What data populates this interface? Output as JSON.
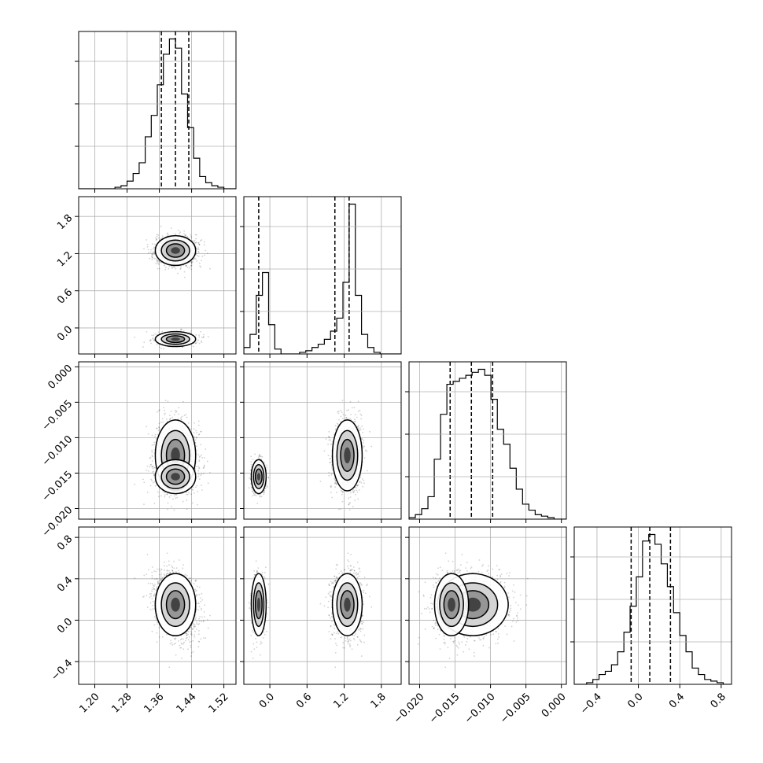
{
  "chart_data": {
    "type": "corner",
    "grid": true,
    "parameters": [
      {
        "ticks": [
          1.2,
          1.28,
          1.36,
          1.44,
          1.52
        ],
        "tick_labels": [
          "1.20",
          "1.28",
          "1.36",
          "1.44",
          "1.52"
        ],
        "range": [
          1.16,
          1.55
        ],
        "quantiles": [
          1.365,
          1.4,
          1.433
        ]
      },
      {
        "ticks": [
          0.0,
          0.6,
          1.2,
          1.8
        ],
        "tick_labels": [
          "0.0",
          "0.6",
          "1.2",
          "1.8"
        ],
        "range": [
          -0.42,
          2.12
        ],
        "quantiles": [
          -0.18,
          1.05,
          1.28
        ]
      },
      {
        "ticks": [
          -0.02,
          -0.015,
          -0.01,
          -0.005,
          0.0
        ],
        "tick_labels": [
          "−0.020",
          "−0.015",
          "−0.010",
          "−0.005",
          "0.000"
        ],
        "range": [
          -0.0215,
          0.0007
        ],
        "quantiles": [
          -0.0157,
          -0.0127,
          -0.0097
        ]
      },
      {
        "ticks": [
          -0.4,
          0.0,
          0.4,
          0.8
        ],
        "tick_labels": [
          "−0.4",
          "0.0",
          "0.4",
          "0.8"
        ],
        "range": [
          -0.62,
          0.9
        ],
        "quantiles": [
          -0.07,
          0.11,
          0.31
        ]
      }
    ],
    "marginals": [
      {
        "bins": [
          1.16,
          1.175,
          1.19,
          1.205,
          1.22,
          1.235,
          1.25,
          1.265,
          1.28,
          1.295,
          1.31,
          1.325,
          1.34,
          1.355,
          1.37,
          1.385,
          1.4,
          1.415,
          1.43,
          1.445,
          1.46,
          1.475,
          1.49,
          1.505,
          1.52,
          1.535,
          1.55
        ],
        "counts": [
          0,
          0,
          0,
          0,
          0,
          0,
          1,
          2,
          5,
          10,
          17,
          34,
          48,
          68,
          88,
          98,
          92,
          62,
          40,
          20,
          8,
          4,
          2,
          1,
          0,
          0
        ]
      },
      {
        "bins": [
          -0.42,
          -0.32,
          -0.22,
          -0.12,
          -0.02,
          0.08,
          0.18,
          0.28,
          0.38,
          0.48,
          0.58,
          0.68,
          0.78,
          0.88,
          0.98,
          1.08,
          1.18,
          1.28,
          1.38,
          1.48,
          1.58,
          1.68,
          1.78,
          1.88,
          1.98,
          2.08,
          2.12
        ],
        "counts": [
          4,
          12,
          36,
          50,
          18,
          3,
          0,
          0,
          0,
          1,
          2,
          4,
          6,
          9,
          14,
          22,
          44,
          92,
          36,
          12,
          4,
          1,
          0,
          0,
          0,
          0
        ]
      },
      {
        "bins": [
          -0.0215,
          -0.02061,
          -0.01972,
          -0.01883,
          -0.01794,
          -0.01705,
          -0.01616,
          -0.01527,
          -0.01438,
          -0.01349,
          -0.0126,
          -0.01171,
          -0.01082,
          -0.00993,
          -0.00904,
          -0.00815,
          -0.00726,
          -0.00637,
          -0.00548,
          -0.00459,
          -0.0037,
          -0.00281,
          -0.00192,
          -0.00103,
          -0.00014,
          0.0007
        ],
        "counts": [
          1,
          3,
          7,
          15,
          40,
          70,
          90,
          92,
          94,
          96,
          98,
          100,
          96,
          80,
          60,
          50,
          34,
          20,
          10,
          6,
          3,
          2,
          1,
          0,
          0
        ]
      },
      {
        "bins": [
          -0.62,
          -0.56,
          -0.5,
          -0.44,
          -0.38,
          -0.32,
          -0.26,
          -0.2,
          -0.14,
          -0.08,
          -0.02,
          0.04,
          0.1,
          0.16,
          0.22,
          0.28,
          0.34,
          0.4,
          0.46,
          0.52,
          0.58,
          0.64,
          0.7,
          0.76,
          0.82,
          0.9
        ],
        "counts": [
          0,
          0,
          1,
          3,
          6,
          8,
          12,
          20,
          32,
          48,
          66,
          88,
          92,
          86,
          74,
          60,
          44,
          30,
          20,
          10,
          6,
          3,
          2,
          1,
          0
        ]
      }
    ],
    "clusters": [
      {
        "mean": [
          1.4,
          1.25,
          -0.0125,
          0.15
        ],
        "sd": [
          0.025,
          0.12,
          0.0025,
          0.15
        ],
        "weight": 0.7
      },
      {
        "mean": [
          1.4,
          -0.18,
          -0.0155,
          0.15
        ],
        "sd": [
          0.025,
          0.06,
          0.0012,
          0.15
        ],
        "weight": 0.3
      }
    ]
  }
}
